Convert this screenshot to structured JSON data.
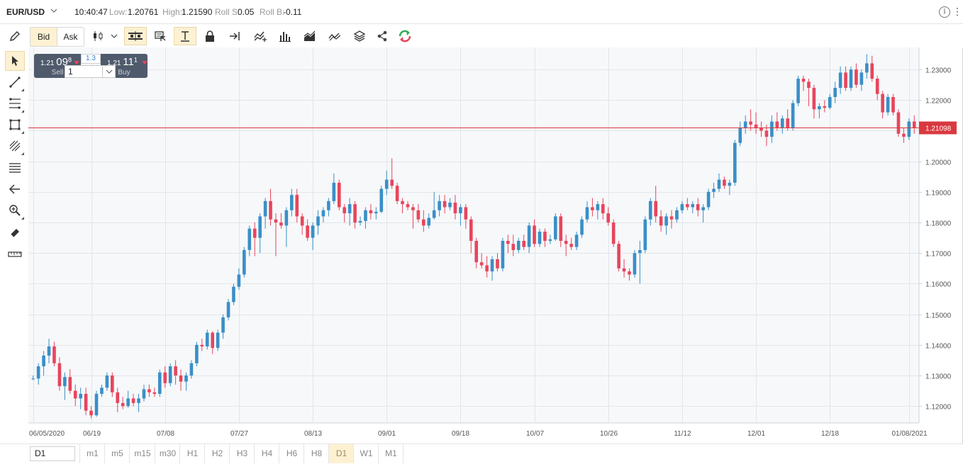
{
  "header": {
    "symbol": "EUR/USD",
    "time": "10:40:47",
    "low_label": "Low:",
    "low_value": "1.20761",
    "high_label": "High:",
    "high_value": "1.21590",
    "roll_s_label": "Roll S:",
    "roll_s_value": "0.05",
    "roll_b_label": "Roll B:",
    "roll_b_value": "-0.11",
    "info_glyph": "i",
    "more_glyph": "⋮"
  },
  "toolbar": {
    "bid_label": "Bid",
    "ask_label": "Ask",
    "icons": [
      "pencil-icon",
      "candlestick-icon",
      "chevron-down-icon",
      "bar-layout-icon",
      "crosshair-select-icon",
      "cursor-text-icon",
      "lock-icon",
      "jump-to-end-icon",
      "add-indicator-icon",
      "volume-bars-icon",
      "area-chart-icon",
      "compare-icon",
      "layers-icon",
      "share-icon",
      "refresh-icon"
    ]
  },
  "left_tools": [
    "pointer-icon",
    "trend-line-icon",
    "fibonacci-icon",
    "rectangle-icon",
    "brush-icon",
    "horizontal-lines-icon",
    "back-arrow-icon",
    "zoom-icon",
    "eraser-icon",
    "ruler-icon"
  ],
  "trade_widget": {
    "sell_prefix": "1.21",
    "sell_big": "09",
    "sell_frac": "8",
    "sell_label": "Sell",
    "buy_prefix": "1.21",
    "buy_big": "11",
    "buy_frac": "1",
    "buy_label": "Buy",
    "spread": "1.3",
    "quantity": "1"
  },
  "timeframes": {
    "selected": "D1",
    "options": [
      "m1",
      "m5",
      "m15",
      "m30",
      "H1",
      "H2",
      "H3",
      "H4",
      "H6",
      "H8",
      "D1",
      "W1",
      "M1"
    ],
    "active": "D1"
  },
  "colors": {
    "up": "#3a8fc7",
    "down": "#e8455c",
    "price_line": "#d9383f",
    "grid": "#e3e6ea",
    "plot_bg": "#f6f8fa"
  },
  "chart_data": {
    "type": "candlestick",
    "symbol": "EUR/USD",
    "current_price": "1.21098",
    "y_ticks": [
      "1.23000",
      "1.22000",
      "1.21000",
      "1.20000",
      "1.19000",
      "1.18000",
      "1.17000",
      "1.16000",
      "1.15000",
      "1.14000",
      "1.13000",
      "1.12000"
    ],
    "ylim": [
      1.1145,
      1.2372
    ],
    "x_ticks": [
      "06/05/2020",
      "06/19",
      "07/08",
      "07/27",
      "08/13",
      "09/01",
      "09/18",
      "10/07",
      "10/26",
      "11/12",
      "12/01",
      "12/18",
      "01/08/2021"
    ],
    "x_tick_index": [
      0,
      11,
      25,
      39,
      53,
      67,
      81,
      95,
      109,
      123,
      137,
      151,
      166
    ],
    "candles": [
      [
        1.129,
        1.13,
        1.1285,
        1.129
      ],
      [
        1.129,
        1.134,
        1.127,
        1.133
      ],
      [
        1.133,
        1.138,
        1.13,
        1.1365
      ],
      [
        1.1365,
        1.142,
        1.134,
        1.1395
      ],
      [
        1.1395,
        1.141,
        1.133,
        1.134
      ],
      [
        1.134,
        1.136,
        1.125,
        1.1265
      ],
      [
        1.1265,
        1.131,
        1.122,
        1.1295
      ],
      [
        1.1295,
        1.132,
        1.124,
        1.125
      ],
      [
        1.125,
        1.127,
        1.12,
        1.1225
      ],
      [
        1.1225,
        1.126,
        1.119,
        1.124
      ],
      [
        1.124,
        1.126,
        1.117,
        1.1185
      ],
      [
        1.1185,
        1.12,
        1.116,
        1.117
      ],
      [
        1.117,
        1.125,
        1.1165,
        1.124
      ],
      [
        1.124,
        1.127,
        1.123,
        1.126
      ],
      [
        1.126,
        1.131,
        1.125,
        1.13
      ],
      [
        1.13,
        1.131,
        1.123,
        1.1245
      ],
      [
        1.1245,
        1.126,
        1.118,
        1.121
      ],
      [
        1.121,
        1.123,
        1.119,
        1.12
      ],
      [
        1.12,
        1.125,
        1.1195,
        1.1225
      ],
      [
        1.1225,
        1.124,
        1.12,
        1.121
      ],
      [
        1.121,
        1.124,
        1.118,
        1.1225
      ],
      [
        1.1225,
        1.127,
        1.1215,
        1.1255
      ],
      [
        1.1255,
        1.127,
        1.123,
        1.1245
      ],
      [
        1.1245,
        1.126,
        1.123,
        1.124
      ],
      [
        1.124,
        1.132,
        1.123,
        1.131
      ],
      [
        1.131,
        1.133,
        1.126,
        1.1275
      ],
      [
        1.1275,
        1.134,
        1.1265,
        1.133
      ],
      [
        1.133,
        1.135,
        1.127,
        1.13
      ],
      [
        1.13,
        1.132,
        1.125,
        1.128
      ],
      [
        1.128,
        1.131,
        1.125,
        1.13
      ],
      [
        1.13,
        1.135,
        1.129,
        1.134
      ],
      [
        1.134,
        1.141,
        1.133,
        1.14
      ],
      [
        1.14,
        1.142,
        1.138,
        1.1395
      ],
      [
        1.1395,
        1.145,
        1.1385,
        1.144
      ],
      [
        1.144,
        1.1445,
        1.137,
        1.139
      ],
      [
        1.139,
        1.145,
        1.138,
        1.144
      ],
      [
        1.144,
        1.15,
        1.142,
        1.149
      ],
      [
        1.149,
        1.155,
        1.148,
        1.154
      ],
      [
        1.154,
        1.16,
        1.153,
        1.159
      ],
      [
        1.159,
        1.165,
        1.158,
        1.163
      ],
      [
        1.163,
        1.172,
        1.162,
        1.171
      ],
      [
        1.171,
        1.179,
        1.169,
        1.178
      ],
      [
        1.178,
        1.18,
        1.169,
        1.175
      ],
      [
        1.175,
        1.183,
        1.17,
        1.182
      ],
      [
        1.182,
        1.188,
        1.178,
        1.187
      ],
      [
        1.187,
        1.191,
        1.179,
        1.181
      ],
      [
        1.181,
        1.183,
        1.169,
        1.18
      ],
      [
        1.18,
        1.183,
        1.178,
        1.179
      ],
      [
        1.179,
        1.185,
        1.172,
        1.184
      ],
      [
        1.184,
        1.191,
        1.182,
        1.189
      ],
      [
        1.189,
        1.191,
        1.18,
        1.182
      ],
      [
        1.182,
        1.183,
        1.176,
        1.179
      ],
      [
        1.179,
        1.181,
        1.174,
        1.175
      ],
      [
        1.175,
        1.18,
        1.171,
        1.179
      ],
      [
        1.179,
        1.184,
        1.176,
        1.182
      ],
      [
        1.182,
        1.185,
        1.18,
        1.184
      ],
      [
        1.184,
        1.188,
        1.182,
        1.187
      ],
      [
        1.187,
        1.196,
        1.186,
        1.193
      ],
      [
        1.193,
        1.194,
        1.184,
        1.185
      ],
      [
        1.185,
        1.186,
        1.18,
        1.183
      ],
      [
        1.183,
        1.188,
        1.179,
        1.186
      ],
      [
        1.186,
        1.187,
        1.178,
        1.18
      ],
      [
        1.18,
        1.182,
        1.179,
        1.1805
      ],
      [
        1.1805,
        1.185,
        1.178,
        1.184
      ],
      [
        1.184,
        1.186,
        1.181,
        1.183
      ],
      [
        1.183,
        1.185,
        1.181,
        1.1835
      ],
      [
        1.1835,
        1.192,
        1.183,
        1.191
      ],
      [
        1.191,
        1.197,
        1.189,
        1.194
      ],
      [
        1.194,
        1.201,
        1.191,
        1.192
      ],
      [
        1.192,
        1.193,
        1.186,
        1.187
      ],
      [
        1.187,
        1.188,
        1.183,
        1.186
      ],
      [
        1.186,
        1.187,
        1.184,
        1.185
      ],
      [
        1.185,
        1.186,
        1.178,
        1.184
      ],
      [
        1.184,
        1.186,
        1.18,
        1.181
      ],
      [
        1.181,
        1.184,
        1.177,
        1.179
      ],
      [
        1.179,
        1.183,
        1.178,
        1.1815
      ],
      [
        1.1815,
        1.19,
        1.181,
        1.184
      ],
      [
        1.184,
        1.189,
        1.182,
        1.187
      ],
      [
        1.187,
        1.189,
        1.183,
        1.185
      ],
      [
        1.185,
        1.188,
        1.184,
        1.1865
      ],
      [
        1.1865,
        1.189,
        1.181,
        1.183
      ],
      [
        1.183,
        1.186,
        1.179,
        1.185
      ],
      [
        1.185,
        1.186,
        1.178,
        1.181
      ],
      [
        1.181,
        1.182,
        1.17,
        1.174
      ],
      [
        1.174,
        1.175,
        1.165,
        1.167
      ],
      [
        1.167,
        1.17,
        1.165,
        1.166
      ],
      [
        1.166,
        1.169,
        1.162,
        1.164
      ],
      [
        1.164,
        1.169,
        1.161,
        1.168
      ],
      [
        1.168,
        1.17,
        1.164,
        1.165
      ],
      [
        1.165,
        1.175,
        1.164,
        1.174
      ],
      [
        1.174,
        1.176,
        1.17,
        1.173
      ],
      [
        1.173,
        1.176,
        1.169,
        1.171
      ],
      [
        1.171,
        1.175,
        1.17,
        1.174
      ],
      [
        1.174,
        1.176,
        1.171,
        1.172
      ],
      [
        1.172,
        1.18,
        1.17,
        1.179
      ],
      [
        1.179,
        1.181,
        1.172,
        1.173
      ],
      [
        1.173,
        1.178,
        1.172,
        1.177
      ],
      [
        1.177,
        1.178,
        1.172,
        1.174
      ],
      [
        1.174,
        1.176,
        1.173,
        1.1745
      ],
      [
        1.1745,
        1.183,
        1.174,
        1.182
      ],
      [
        1.182,
        1.183,
        1.172,
        1.174
      ],
      [
        1.174,
        1.176,
        1.169,
        1.173
      ],
      [
        1.173,
        1.175,
        1.171,
        1.172
      ],
      [
        1.172,
        1.177,
        1.171,
        1.176
      ],
      [
        1.176,
        1.182,
        1.175,
        1.181
      ],
      [
        1.181,
        1.187,
        1.18,
        1.185
      ],
      [
        1.185,
        1.188,
        1.182,
        1.184
      ],
      [
        1.184,
        1.187,
        1.181,
        1.186
      ],
      [
        1.186,
        1.188,
        1.181,
        1.183
      ],
      [
        1.183,
        1.185,
        1.179,
        1.18
      ],
      [
        1.18,
        1.181,
        1.172,
        1.173
      ],
      [
        1.173,
        1.174,
        1.164,
        1.165
      ],
      [
        1.165,
        1.168,
        1.162,
        1.164
      ],
      [
        1.164,
        1.165,
        1.161,
        1.163
      ],
      [
        1.163,
        1.171,
        1.162,
        1.17
      ],
      [
        1.17,
        1.174,
        1.16,
        1.171
      ],
      [
        1.171,
        1.182,
        1.17,
        1.181
      ],
      [
        1.181,
        1.188,
        1.179,
        1.187
      ],
      [
        1.187,
        1.192,
        1.18,
        1.182
      ],
      [
        1.182,
        1.184,
        1.177,
        1.179
      ],
      [
        1.179,
        1.183,
        1.176,
        1.182
      ],
      [
        1.182,
        1.184,
        1.178,
        1.181
      ],
      [
        1.181,
        1.185,
        1.18,
        1.184
      ],
      [
        1.184,
        1.187,
        1.183,
        1.186
      ],
      [
        1.186,
        1.188,
        1.184,
        1.185
      ],
      [
        1.185,
        1.187,
        1.183,
        1.186
      ],
      [
        1.186,
        1.188,
        1.182,
        1.184
      ],
      [
        1.184,
        1.186,
        1.18,
        1.185
      ],
      [
        1.185,
        1.191,
        1.184,
        1.19
      ],
      [
        1.19,
        1.193,
        1.188,
        1.191
      ],
      [
        1.191,
        1.196,
        1.19,
        1.194
      ],
      [
        1.194,
        1.195,
        1.191,
        1.192
      ],
      [
        1.192,
        1.194,
        1.189,
        1.193
      ],
      [
        1.193,
        1.207,
        1.192,
        1.206
      ],
      [
        1.206,
        1.213,
        1.205,
        1.211
      ],
      [
        1.211,
        1.215,
        1.209,
        1.213
      ],
      [
        1.213,
        1.217,
        1.21,
        1.212
      ],
      [
        1.212,
        1.216,
        1.209,
        1.211
      ],
      [
        1.211,
        1.213,
        1.208,
        1.21
      ],
      [
        1.21,
        1.212,
        1.205,
        1.208
      ],
      [
        1.208,
        1.215,
        1.206,
        1.213
      ],
      [
        1.213,
        1.216,
        1.21,
        1.211
      ],
      [
        1.211,
        1.215,
        1.209,
        1.214
      ],
      [
        1.214,
        1.217,
        1.21,
        1.211
      ],
      [
        1.211,
        1.22,
        1.21,
        1.219
      ],
      [
        1.219,
        1.228,
        1.218,
        1.227
      ],
      [
        1.227,
        1.228,
        1.223,
        1.226
      ],
      [
        1.226,
        1.227,
        1.218,
        1.224
      ],
      [
        1.224,
        1.225,
        1.214,
        1.217
      ],
      [
        1.217,
        1.219,
        1.214,
        1.218
      ],
      [
        1.218,
        1.22,
        1.216,
        1.2175
      ],
      [
        1.2175,
        1.222,
        1.217,
        1.221
      ],
      [
        1.221,
        1.226,
        1.219,
        1.224
      ],
      [
        1.224,
        1.231,
        1.222,
        1.229
      ],
      [
        1.229,
        1.231,
        1.223,
        1.224
      ],
      [
        1.224,
        1.231,
        1.223,
        1.23
      ],
      [
        1.23,
        1.232,
        1.224,
        1.225
      ],
      [
        1.225,
        1.23,
        1.223,
        1.229
      ],
      [
        1.229,
        1.235,
        1.227,
        1.232
      ],
      [
        1.232,
        1.2345,
        1.226,
        1.227
      ],
      [
        1.227,
        1.228,
        1.22,
        1.222
      ],
      [
        1.222,
        1.223,
        1.214,
        1.216
      ],
      [
        1.216,
        1.222,
        1.215,
        1.221
      ],
      [
        1.221,
        1.222,
        1.215,
        1.216
      ],
      [
        1.216,
        1.217,
        1.208,
        1.209
      ],
      [
        1.209,
        1.211,
        1.206,
        1.208
      ],
      [
        1.208,
        1.214,
        1.207,
        1.213
      ],
      [
        1.213,
        1.215,
        1.209,
        1.211
      ]
    ]
  }
}
